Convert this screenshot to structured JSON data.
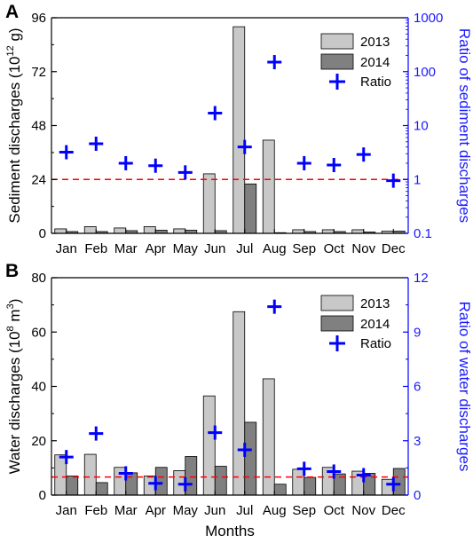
{
  "chart_data": [
    {
      "type": "bar",
      "panel_label": "A",
      "categories": [
        "Jan",
        "Feb",
        "Mar",
        "Apr",
        "May",
        "Jun",
        "Jul",
        "Aug",
        "Sep",
        "Oct",
        "Nov",
        "Dec"
      ],
      "ylabel_main": "Sediment discharges (10",
      "ylabel_sup": "12",
      "ylabel_tail": " g)",
      "ylim": [
        0,
        96
      ],
      "yticks": [
        "0",
        "24",
        "48",
        "72",
        "96"
      ],
      "y2label": "Ratio of sediment discharges",
      "y2scale": "log",
      "y2lim": [
        0.1,
        1000
      ],
      "y2ticks": [
        "0.1",
        "1",
        "10",
        "100",
        "1000"
      ],
      "reference_line": {
        "axis": "y2",
        "value": 1,
        "style": "dashed",
        "color": "#ff0000"
      },
      "series": [
        {
          "name": "2013",
          "color": "#c8c8c8",
          "values": [
            2.0,
            3.0,
            2.4,
            3.0,
            2.0,
            26.5,
            92.0,
            41.5,
            1.6,
            1.6,
            1.6,
            1.0
          ]
        },
        {
          "name": "2014",
          "color": "#808080",
          "values": [
            0.8,
            0.8,
            1.2,
            1.4,
            1.4,
            1.2,
            22.0,
            0.3,
            0.8,
            0.8,
            0.6,
            1.0
          ]
        },
        {
          "name": "Ratio",
          "marker": "+",
          "color": "#0000ff",
          "axis": "y2",
          "values": [
            3.2,
            4.6,
            2.0,
            1.8,
            1.35,
            17,
            4.0,
            150,
            2.0,
            1.85,
            2.9,
            0.95
          ]
        }
      ],
      "legend_position": "top-right",
      "grid": false
    },
    {
      "type": "bar",
      "panel_label": "B",
      "categories": [
        "Jan",
        "Feb",
        "Mar",
        "Apr",
        "May",
        "Jun",
        "Jul",
        "Aug",
        "Sep",
        "Oct",
        "Nov",
        "Dec"
      ],
      "xlabel": "Months",
      "ylabel_main": "Water discharges (10",
      "ylabel_sup": "8",
      "ylabel_tail": " m",
      "ylabel_sup2": "3",
      "ylabel_end": ")",
      "ylim": [
        0,
        80
      ],
      "yticks": [
        "0",
        "20",
        "40",
        "60",
        "80"
      ],
      "y2label": "Ratio of water discharges",
      "y2scale": "linear",
      "y2lim": [
        0,
        12
      ],
      "y2ticks": [
        "0",
        "3",
        "6",
        "9",
        "12"
      ],
      "reference_line": {
        "axis": "y2",
        "value": 1,
        "style": "dashed",
        "color": "#ff0000"
      },
      "series": [
        {
          "name": "2013",
          "color": "#c8c8c8",
          "values": [
            14.8,
            15.0,
            10.2,
            7.0,
            9.0,
            36.5,
            67.5,
            42.8,
            9.5,
            10.2,
            8.8,
            5.8
          ]
        },
        {
          "name": "2014",
          "color": "#808080",
          "values": [
            7.0,
            4.6,
            8.2,
            10.2,
            14.2,
            10.6,
            26.8,
            4.0,
            6.5,
            7.8,
            8.0,
            9.8
          ]
        },
        {
          "name": "Ratio",
          "marker": "+",
          "color": "#0000ff",
          "axis": "y2",
          "values": [
            2.1,
            3.4,
            1.2,
            0.65,
            0.6,
            3.45,
            2.5,
            10.4,
            1.45,
            1.3,
            1.1,
            0.6
          ]
        }
      ],
      "legend_position": "top-right",
      "grid": false
    }
  ]
}
